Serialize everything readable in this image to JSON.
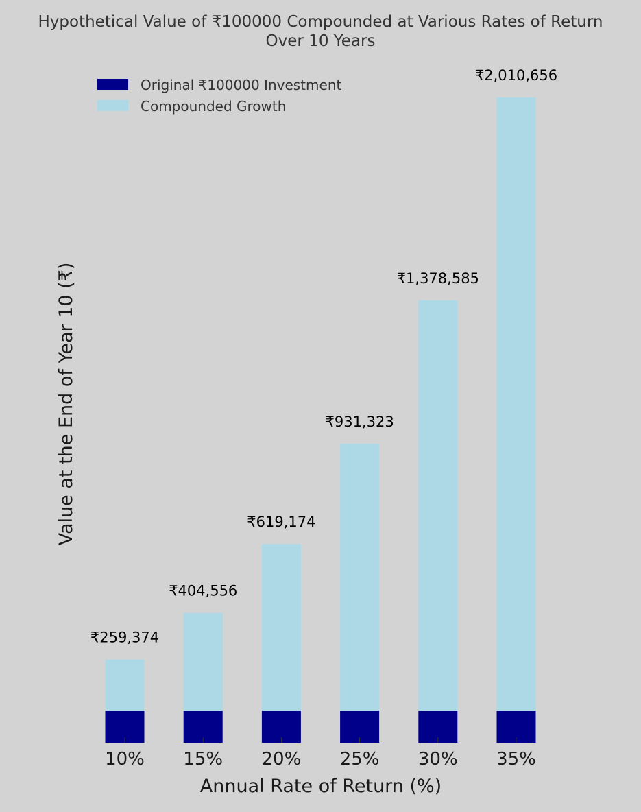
{
  "chart_data": {
    "type": "bar",
    "stacked": true,
    "title_lines": [
      "Hypothetical Value of ₹100000 Compounded at Various Rates of Return",
      "Over 10 Years"
    ],
    "xlabel": "Annual Rate of Return (%)",
    "ylabel": "Value at the End of Year 10 (₹)",
    "categories": [
      "10%",
      "15%",
      "20%",
      "25%",
      "30%",
      "35%"
    ],
    "series": [
      {
        "name": "Original ₹100000 Investment",
        "color": "#00008b",
        "values": [
          100000,
          100000,
          100000,
          100000,
          100000,
          100000
        ]
      },
      {
        "name": "Compounded Growth",
        "color": "#add8e6",
        "values": [
          159374,
          304556,
          519174,
          831323,
          1278585,
          1910656
        ]
      }
    ],
    "totals": [
      259374,
      404556,
      619174,
      931323,
      1378585,
      2010656
    ],
    "data_labels": [
      "₹259,374",
      "₹404,556",
      "₹619,174",
      "₹931,323",
      "₹1,378,585",
      "₹2,010,656"
    ],
    "ylim": [
      0,
      2010656
    ],
    "y_axis_visible": false,
    "grid": false,
    "legend_position": "top-left",
    "background": "#d3d3d3",
    "text_color": "#333333"
  }
}
